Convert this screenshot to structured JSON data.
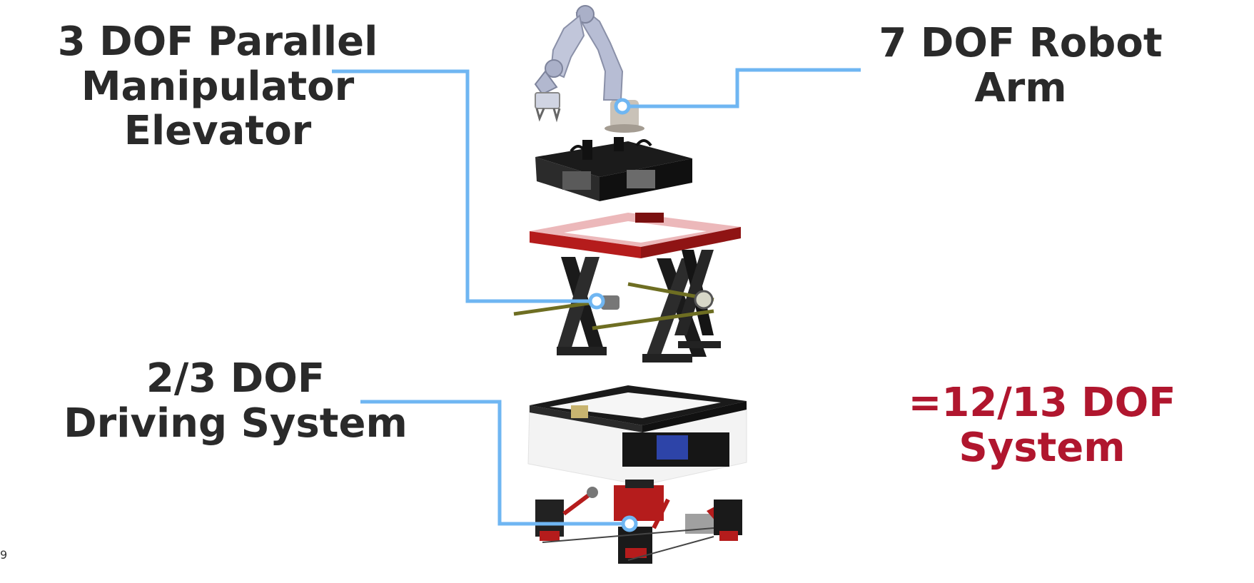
{
  "labels": {
    "parallel": [
      "3 DOF Parallel",
      "Manipulator",
      "Elevator"
    ],
    "arm": [
      "7 DOF Robot",
      "Arm"
    ],
    "drive": [
      "2/3 DOF",
      "Driving System"
    ],
    "total": [
      "=12/13 DOF",
      "System"
    ]
  },
  "slide_number": "9",
  "colors": {
    "text": "#2a2a2a",
    "accent": "#b0162e",
    "callout": "#6fb6f2",
    "frame_red": "#b51c1c",
    "frame_black": "#161616",
    "arm_gray": "#b9bfd6"
  }
}
